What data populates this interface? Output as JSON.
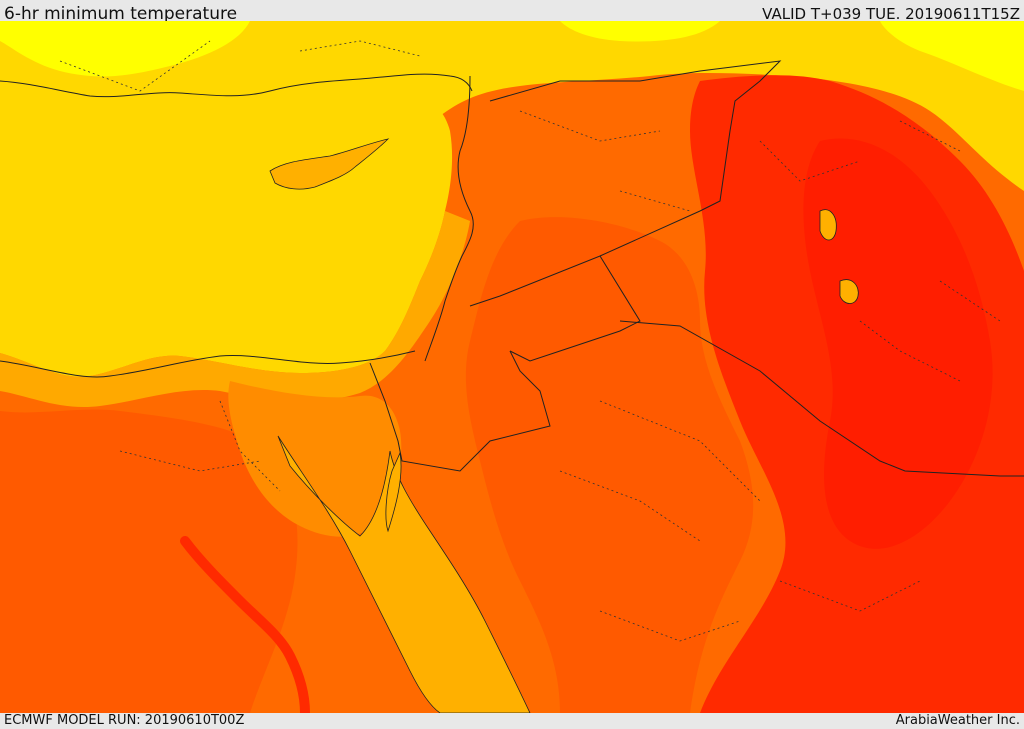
{
  "header": {
    "title": "6-hr minimum temperature",
    "valid": "VALID T+039 TUE. 20190611T15Z"
  },
  "footer": {
    "model_run": "ECMWF MODEL RUN: 20190610T00Z",
    "credit": "ArabiaWeather Inc."
  },
  "colors": {
    "sea_yellow": "#ffd800",
    "light_yellow": "#ffff00",
    "orange_light": "#ffb000",
    "orange": "#ff8c00",
    "orange_dark": "#ff5a00",
    "red": "#ff2a00",
    "coast": "#222222"
  }
}
